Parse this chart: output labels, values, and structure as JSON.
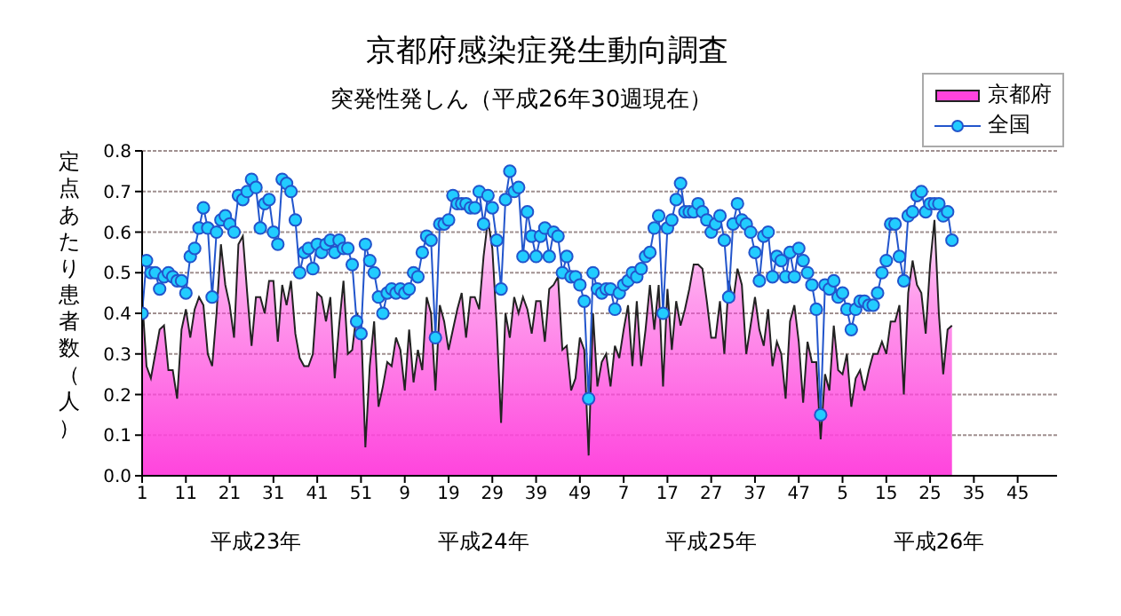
{
  "chart_data": {
    "type": "area",
    "title": "京都府感染症発生動向調査",
    "subtitle": "突発性発しん（平成26年30週現在）",
    "ylabel": "定点あたり患者数（人）",
    "annotations": [
      "平成23年",
      "平成24年",
      "平成25年",
      "平成26年"
    ],
    "categories": [
      "1",
      null,
      null,
      null,
      null,
      null,
      null,
      null,
      null,
      null,
      "11",
      null,
      null,
      null,
      null,
      null,
      null,
      null,
      null,
      null,
      "21",
      null,
      null,
      null,
      null,
      null,
      null,
      null,
      null,
      null,
      "31",
      null,
      null,
      null,
      null,
      null,
      null,
      null,
      null,
      null,
      "41",
      null,
      null,
      null,
      null,
      null,
      null,
      null,
      null,
      null,
      "51",
      null,
      null,
      null,
      null,
      null,
      null,
      null,
      null,
      null,
      "9",
      null,
      null,
      null,
      null,
      null,
      null,
      null,
      null,
      null,
      "19",
      null,
      null,
      null,
      null,
      null,
      null,
      null,
      null,
      null,
      "29",
      null,
      null,
      null,
      null,
      null,
      null,
      null,
      null,
      null,
      "39",
      null,
      null,
      null,
      null,
      null,
      null,
      null,
      null,
      null,
      "49",
      null,
      null,
      null,
      null,
      null,
      null,
      null,
      null,
      null,
      "7",
      null,
      null,
      null,
      null,
      null,
      null,
      null,
      null,
      null,
      "17",
      null,
      null,
      null,
      null,
      null,
      null,
      null,
      null,
      null,
      "27",
      null,
      null,
      null,
      null,
      null,
      null,
      null,
      null,
      null,
      "37",
      null,
      null,
      null,
      null,
      null,
      null,
      null,
      null,
      null,
      "47",
      null,
      null,
      null,
      null,
      null,
      null,
      null,
      null,
      null,
      "5",
      null,
      null,
      null,
      null,
      null,
      null,
      null,
      null,
      null,
      "15",
      null,
      null,
      null,
      null,
      null,
      null,
      null,
      null,
      null,
      "25",
      null,
      null,
      null,
      null,
      null,
      null,
      null,
      null,
      null,
      "35",
      null,
      null,
      null,
      null,
      null,
      null,
      null,
      null,
      null,
      "45",
      null,
      null,
      null,
      null,
      null,
      null,
      null
    ],
    "series": [
      {
        "name": "京都府",
        "color": "#ff44dd",
        "values": [
          0.44,
          0.27,
          0.24,
          0.3,
          0.36,
          0.37,
          0.26,
          0.26,
          0.19,
          0.36,
          0.41,
          0.34,
          0.41,
          0.44,
          0.42,
          0.3,
          0.27,
          0.4,
          0.57,
          0.47,
          0.42,
          0.34,
          0.57,
          0.59,
          0.45,
          0.32,
          0.44,
          0.44,
          0.4,
          0.48,
          0.48,
          0.33,
          0.47,
          0.42,
          0.48,
          0.35,
          0.29,
          0.27,
          0.27,
          0.3,
          0.45,
          0.44,
          0.38,
          0.44,
          0.24,
          0.37,
          0.48,
          0.3,
          0.31,
          0.4,
          0.38,
          0.07,
          0.27,
          0.38,
          0.17,
          0.22,
          0.28,
          0.27,
          0.34,
          0.31,
          0.21,
          0.36,
          0.23,
          0.31,
          0.26,
          0.44,
          0.4,
          0.21,
          0.42,
          0.38,
          0.31,
          0.36,
          0.41,
          0.45,
          0.34,
          0.44,
          0.44,
          0.41,
          0.54,
          0.63,
          0.56,
          0.37,
          0.13,
          0.4,
          0.34,
          0.44,
          0.4,
          0.44,
          0.41,
          0.35,
          0.43,
          0.43,
          0.33,
          0.46,
          0.47,
          0.49,
          0.31,
          0.32,
          0.21,
          0.24,
          0.34,
          0.31,
          0.05,
          0.4,
          0.22,
          0.28,
          0.3,
          0.22,
          0.32,
          0.29,
          0.36,
          0.42,
          0.27,
          0.43,
          0.27,
          0.36,
          0.47,
          0.36,
          0.47,
          0.22,
          0.46,
          0.31,
          0.43,
          0.37,
          0.41,
          0.46,
          0.52,
          0.52,
          0.51,
          0.43,
          0.34,
          0.34,
          0.43,
          0.3,
          0.48,
          0.43,
          0.51,
          0.47,
          0.3,
          0.37,
          0.44,
          0.36,
          0.32,
          0.41,
          0.27,
          0.33,
          0.3,
          0.19,
          0.38,
          0.42,
          0.33,
          0.18,
          0.33,
          0.28,
          0.28,
          0.09,
          0.25,
          0.21,
          0.37,
          0.26,
          0.25,
          0.3,
          0.17,
          0.24,
          0.26,
          0.21,
          0.26,
          0.3,
          0.3,
          0.33,
          0.3,
          0.38,
          0.38,
          0.42,
          0.2,
          0.45,
          0.53,
          0.47,
          0.45,
          0.35,
          0.52,
          0.63,
          0.4,
          0.25,
          0.36,
          0.37,
          null,
          null,
          null,
          null,
          null,
          null,
          null,
          null,
          null,
          null,
          null,
          null,
          null,
          null,
          null,
          null,
          null,
          null,
          null,
          null,
          null,
          null
        ]
      },
      {
        "name": "全国",
        "type": "line",
        "color": "#2255cc",
        "marker": "circle",
        "values": [
          0.4,
          0.53,
          0.5,
          0.5,
          0.46,
          0.49,
          0.5,
          0.49,
          0.48,
          0.48,
          0.45,
          0.54,
          0.56,
          0.61,
          0.66,
          0.61,
          0.44,
          0.6,
          0.63,
          0.64,
          0.62,
          0.6,
          0.69,
          0.68,
          0.7,
          0.73,
          0.71,
          0.61,
          0.67,
          0.68,
          0.6,
          0.57,
          0.73,
          0.72,
          0.7,
          0.63,
          0.5,
          0.55,
          0.56,
          0.51,
          0.57,
          0.55,
          0.57,
          0.58,
          0.55,
          0.58,
          0.56,
          0.56,
          0.52,
          0.38,
          0.35,
          0.57,
          0.53,
          0.5,
          0.44,
          0.4,
          0.45,
          0.46,
          0.45,
          0.46,
          0.45,
          0.46,
          0.5,
          0.49,
          0.55,
          0.59,
          0.58,
          0.34,
          0.62,
          0.62,
          0.63,
          0.69,
          0.67,
          0.67,
          0.67,
          0.66,
          0.66,
          0.7,
          0.62,
          0.69,
          0.66,
          0.58,
          0.46,
          0.68,
          0.75,
          0.7,
          0.71,
          0.54,
          0.65,
          0.59,
          0.54,
          0.59,
          0.61,
          0.54,
          0.6,
          0.59,
          0.5,
          0.54,
          0.49,
          0.49,
          0.47,
          0.43,
          0.19,
          0.5,
          0.46,
          0.45,
          0.46,
          0.46,
          0.41,
          0.45,
          0.47,
          0.48,
          0.5,
          0.49,
          0.51,
          0.54,
          0.55,
          0.61,
          0.64,
          0.4,
          0.61,
          0.63,
          0.68,
          0.72,
          0.65,
          0.65,
          0.65,
          0.67,
          0.65,
          0.63,
          0.6,
          0.62,
          0.64,
          0.58,
          0.44,
          0.62,
          0.67,
          0.63,
          0.62,
          0.6,
          0.55,
          0.48,
          0.59,
          0.6,
          0.49,
          0.54,
          0.53,
          0.49,
          0.55,
          0.49,
          0.56,
          0.53,
          0.5,
          0.47,
          0.41,
          0.15,
          0.47,
          0.46,
          0.48,
          0.44,
          0.45,
          0.41,
          0.36,
          0.41,
          0.43,
          0.43,
          0.42,
          0.42,
          0.45,
          0.5,
          0.53,
          0.62,
          0.62,
          0.54,
          0.48,
          0.64,
          0.65,
          0.69,
          0.7,
          0.65,
          0.67,
          0.67,
          0.67,
          0.64,
          0.65,
          0.58,
          null,
          null,
          null,
          null,
          null,
          null,
          null,
          null,
          null,
          null,
          null,
          null,
          null,
          null,
          null,
          null,
          null,
          null,
          null,
          null,
          null,
          null
        ]
      }
    ],
    "ylim": [
      0,
      0.8
    ],
    "yticks": [
      {
        "value": 0,
        "label": "0.0"
      },
      {
        "value": 0.1,
        "label": "0.1"
      },
      {
        "value": 0.2,
        "label": "0.2"
      },
      {
        "value": 0.3,
        "label": "0.3"
      },
      {
        "value": 0.4,
        "label": "0.4"
      },
      {
        "value": 0.5,
        "label": "0.5"
      },
      {
        "value": 0.6,
        "label": "0.6"
      },
      {
        "value": 0.7,
        "label": "0.7"
      },
      {
        "value": 0.8,
        "label": "0.8"
      }
    ],
    "grid": "y",
    "legend": "top right"
  }
}
